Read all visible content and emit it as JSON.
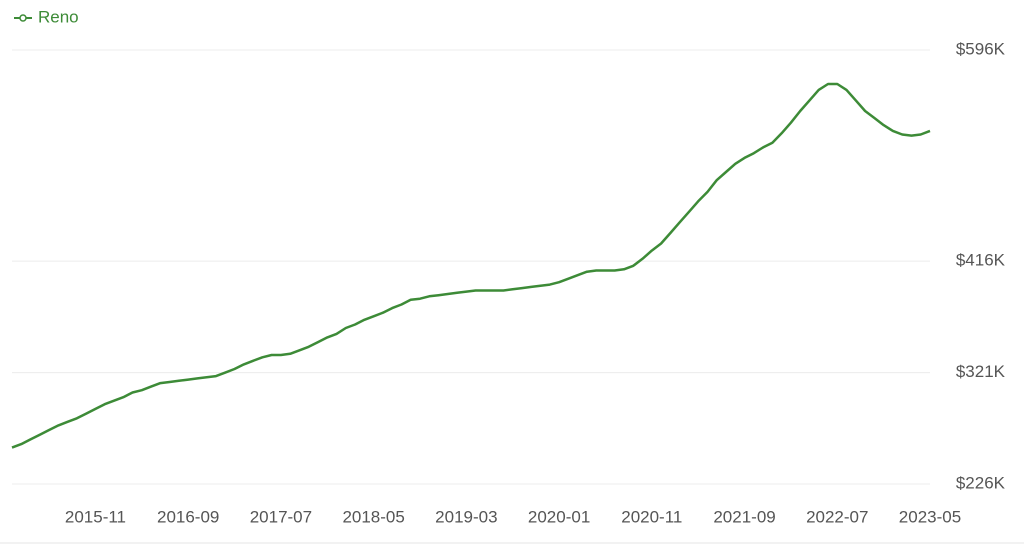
{
  "chart_data": {
    "type": "line",
    "categories": [
      null,
      null,
      null,
      null,
      null,
      null,
      null,
      null,
      null,
      "2015-11",
      null,
      null,
      null,
      null,
      null,
      null,
      null,
      null,
      null,
      "2016-09",
      null,
      null,
      null,
      null,
      null,
      null,
      null,
      null,
      null,
      "2017-07",
      null,
      null,
      null,
      null,
      null,
      null,
      null,
      null,
      null,
      "2018-05",
      null,
      null,
      null,
      null,
      null,
      null,
      null,
      null,
      null,
      "2019-03",
      null,
      null,
      null,
      null,
      null,
      null,
      null,
      null,
      null,
      "2020-01",
      null,
      null,
      null,
      null,
      null,
      null,
      null,
      null,
      null,
      "2020-11",
      null,
      null,
      null,
      null,
      null,
      null,
      null,
      null,
      null,
      "2021-09",
      null,
      null,
      null,
      null,
      null,
      null,
      null,
      null,
      null,
      "2022-07",
      null,
      null,
      null,
      null,
      null,
      null,
      null,
      null,
      null,
      "2023-05"
    ],
    "series": [
      {
        "name": "Reno",
        "color": "#3d8b37",
        "values": [
          257000,
          260000,
          264000,
          268000,
          272000,
          276000,
          279000,
          282000,
          286000,
          290000,
          294000,
          297000,
          300000,
          304000,
          306000,
          309000,
          312000,
          313000,
          314000,
          315000,
          316000,
          317000,
          318000,
          321000,
          324000,
          328000,
          331000,
          334000,
          336000,
          336000,
          337000,
          340000,
          343000,
          347000,
          351000,
          354000,
          359000,
          362000,
          366000,
          369000,
          372000,
          376000,
          379000,
          383000,
          384000,
          386000,
          387000,
          388000,
          389000,
          390000,
          391000,
          391000,
          391000,
          391000,
          392000,
          393000,
          394000,
          395000,
          396000,
          398000,
          401000,
          404000,
          407000,
          408000,
          408000,
          408000,
          409000,
          412000,
          418000,
          425000,
          431000,
          440000,
          449000,
          458000,
          467000,
          475000,
          485000,
          492000,
          499000,
          504000,
          508000,
          513000,
          517000,
          525000,
          534000,
          544000,
          553000,
          562000,
          567000,
          567000,
          562000,
          553000,
          544000,
          538000,
          532000,
          527000,
          524000,
          523000,
          524000,
          527000
        ]
      }
    ],
    "ylim": [
      226000,
      596000
    ],
    "yticks": [
      {
        "value": 226000,
        "label": "$226K"
      },
      {
        "value": 321000,
        "label": "$321K"
      },
      {
        "value": 416000,
        "label": "$416K"
      },
      {
        "value": 596000,
        "label": "$596K"
      }
    ],
    "grid": true
  }
}
